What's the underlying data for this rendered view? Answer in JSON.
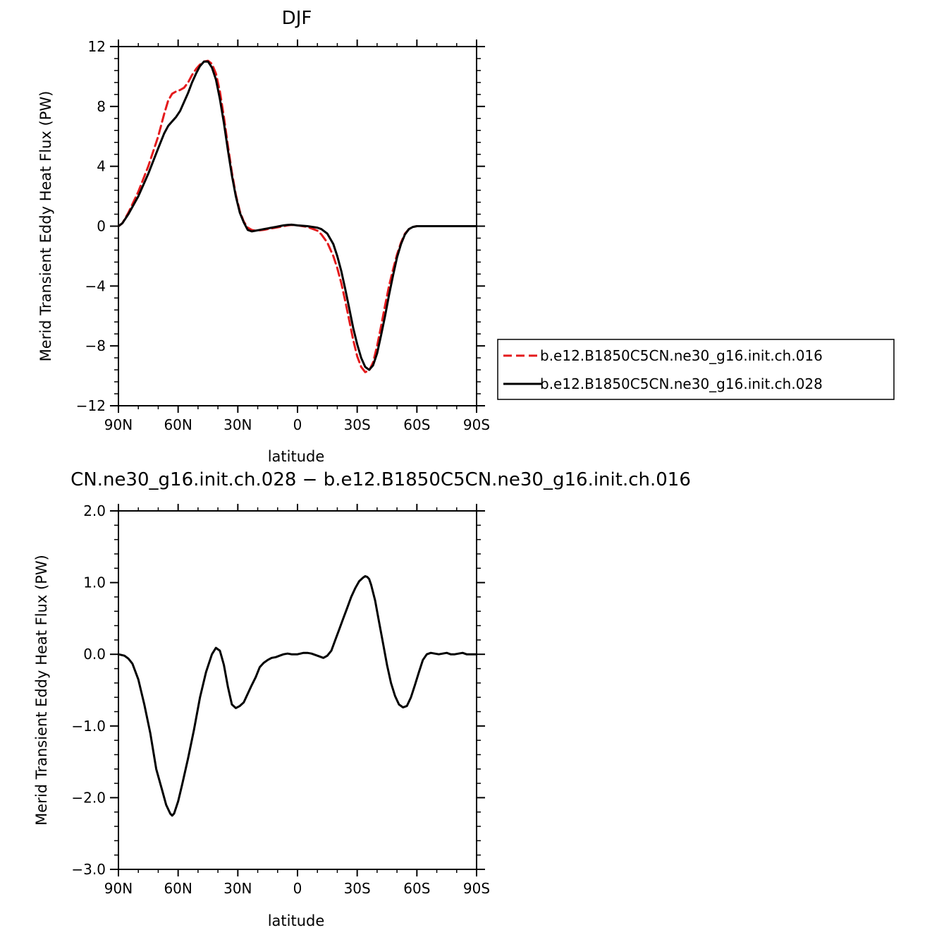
{
  "chart_data": [
    {
      "type": "line",
      "title": "DJF",
      "xlabel": "latitude",
      "ylabel": "Merid Transient Eddy Heat Flux (PW)",
      "xlim": [
        -90,
        90
      ],
      "ylim": [
        -12,
        12
      ],
      "x_ticks": [
        -90,
        -60,
        -30,
        0,
        30,
        60,
        90
      ],
      "x_tick_labels": [
        "90N",
        "60N",
        "30N",
        "0",
        "30S",
        "60S",
        "90S"
      ],
      "y_ticks": [
        -12,
        -8,
        -4,
        0,
        4,
        8,
        12
      ],
      "y_tick_labels": [
        "−12",
        "−8",
        "−4",
        "0",
        "4",
        "8",
        "12"
      ],
      "legend_position": "right",
      "series": [
        {
          "name": "b.e12.B1850C5CN.ne30_g16.init.ch.016",
          "color": "#e41a1c",
          "dash": "dashed",
          "x": [
            -90,
            -88,
            -85,
            -80,
            -75,
            -70,
            -67,
            -65,
            -63,
            -61,
            -59,
            -57,
            -55,
            -53,
            -51,
            -49,
            -47,
            -45,
            -43,
            -41,
            -39,
            -37,
            -35,
            -33,
            -31,
            -29,
            -27,
            -25,
            -23,
            -21,
            -19,
            -17,
            -15,
            -13,
            -11,
            -9,
            -7,
            -5,
            -3,
            0,
            5,
            10,
            12,
            15,
            18,
            20,
            22,
            24,
            26,
            28,
            30,
            32,
            34,
            36,
            38,
            40,
            42,
            44,
            46,
            48,
            50,
            52,
            54,
            56,
            58,
            60,
            62,
            64,
            66,
            68,
            70,
            72,
            75,
            80,
            85,
            90
          ],
          "y": [
            0,
            0.2,
            0.9,
            2.3,
            4.0,
            6.0,
            7.5,
            8.4,
            8.85,
            9.0,
            9.1,
            9.25,
            9.6,
            10.1,
            10.5,
            10.8,
            11.0,
            11.05,
            10.85,
            10.2,
            9.0,
            7.3,
            5.4,
            3.6,
            2.1,
            1.0,
            0.3,
            -0.1,
            -0.25,
            -0.3,
            -0.28,
            -0.25,
            -0.2,
            -0.15,
            -0.1,
            -0.05,
            0,
            0.05,
            0.08,
            0.05,
            -0.05,
            -0.3,
            -0.55,
            -1.1,
            -2.0,
            -2.8,
            -3.8,
            -5.0,
            -6.3,
            -7.6,
            -8.7,
            -9.4,
            -9.75,
            -9.65,
            -9.1,
            -8.0,
            -6.7,
            -5.3,
            -4.0,
            -2.9,
            -1.9,
            -1.1,
            -0.5,
            -0.2,
            -0.05,
            0,
            0,
            0,
            0,
            0,
            0,
            0,
            0,
            0,
            0,
            0
          ]
        },
        {
          "name": "b.e12.B1850C5CN.ne30_g16.init.ch.028",
          "color": "#000000",
          "dash": "solid",
          "x": [
            -90,
            -88,
            -85,
            -80,
            -75,
            -70,
            -67,
            -65,
            -63,
            -61,
            -59,
            -57,
            -55,
            -53,
            -51,
            -49,
            -47,
            -45,
            -43,
            -41,
            -39,
            -37,
            -35,
            -33,
            -31,
            -29,
            -27,
            -25,
            -23,
            -21,
            -19,
            -17,
            -15,
            -13,
            -11,
            -9,
            -7,
            -5,
            -3,
            0,
            5,
            10,
            12,
            15,
            18,
            20,
            22,
            24,
            26,
            28,
            30,
            32,
            34,
            36,
            38,
            40,
            42,
            44,
            46,
            48,
            50,
            52,
            54,
            56,
            58,
            60,
            62,
            64,
            66,
            68,
            70,
            72,
            75,
            80,
            85,
            90
          ],
          "y": [
            0,
            0.2,
            0.8,
            2.0,
            3.5,
            5.2,
            6.2,
            6.7,
            7.0,
            7.3,
            7.7,
            8.3,
            8.9,
            9.6,
            10.2,
            10.7,
            11.0,
            11.0,
            10.6,
            9.8,
            8.5,
            6.9,
            5.1,
            3.4,
            2.0,
            0.9,
            0.25,
            -0.25,
            -0.35,
            -0.3,
            -0.25,
            -0.2,
            -0.15,
            -0.1,
            -0.05,
            0,
            0.05,
            0.08,
            0.1,
            0.05,
            0,
            -0.1,
            -0.2,
            -0.5,
            -1.2,
            -2.0,
            -3.0,
            -4.2,
            -5.5,
            -6.8,
            -7.9,
            -8.8,
            -9.4,
            -9.6,
            -9.3,
            -8.5,
            -7.3,
            -6.0,
            -4.6,
            -3.3,
            -2.1,
            -1.2,
            -0.55,
            -0.2,
            -0.05,
            0,
            0,
            0,
            0,
            0,
            0,
            0,
            0,
            0,
            0,
            0
          ]
        }
      ]
    },
    {
      "type": "line",
      "title": "CN.ne30_g16.init.ch.028 − b.e12.B1850C5CN.ne30_g16.init.ch.016",
      "xlabel": "latitude",
      "ylabel": "Merid Transient Eddy Heat Flux (PW)",
      "xlim": [
        -90,
        90
      ],
      "ylim": [
        -3.0,
        2.0
      ],
      "x_ticks": [
        -90,
        -60,
        -30,
        0,
        30,
        60,
        90
      ],
      "x_tick_labels": [
        "90N",
        "60N",
        "30N",
        "0",
        "30S",
        "60S",
        "90S"
      ],
      "y_ticks": [
        -3.0,
        -2.0,
        -1.0,
        0.0,
        1.0,
        2.0
      ],
      "y_tick_labels": [
        "−3.0",
        "−2.0",
        "−1.0",
        "0.0",
        "1.0",
        "2.0"
      ],
      "series": [
        {
          "color": "#000000",
          "dash": "solid",
          "x": [
            -90,
            -87,
            -85,
            -83,
            -80,
            -77,
            -74,
            -71,
            -68,
            -66,
            -64,
            -63,
            -62,
            -60,
            -58,
            -55,
            -52,
            -49,
            -46,
            -43,
            -41,
            -39,
            -38,
            -37,
            -35,
            -33,
            -31,
            -29,
            -27,
            -25,
            -23,
            -21,
            -19,
            -17,
            -15,
            -13,
            -11,
            -9,
            -7,
            -5,
            -3,
            0,
            3,
            5,
            7,
            9,
            11,
            13,
            15,
            17,
            19,
            21,
            23,
            25,
            27,
            29,
            31,
            33,
            34,
            35,
            36,
            37,
            39,
            41,
            43,
            45,
            47,
            49,
            51,
            53,
            55,
            57,
            59,
            61,
            63,
            65,
            67,
            69,
            71,
            73,
            75,
            77,
            79,
            81,
            83,
            85,
            87,
            90
          ],
          "y": [
            0,
            -0.02,
            -0.06,
            -0.13,
            -0.35,
            -0.7,
            -1.1,
            -1.6,
            -1.9,
            -2.1,
            -2.22,
            -2.25,
            -2.22,
            -2.05,
            -1.82,
            -1.45,
            -1.05,
            -0.6,
            -0.25,
            0.0,
            0.09,
            0.05,
            -0.05,
            -0.15,
            -0.45,
            -0.7,
            -0.75,
            -0.72,
            -0.67,
            -0.55,
            -0.43,
            -0.32,
            -0.18,
            -0.12,
            -0.08,
            -0.05,
            -0.04,
            -0.02,
            0.0,
            0.01,
            0.0,
            0.0,
            0.02,
            0.02,
            0.01,
            -0.01,
            -0.03,
            -0.05,
            -0.02,
            0.05,
            0.2,
            0.35,
            0.5,
            0.65,
            0.8,
            0.92,
            1.02,
            1.07,
            1.09,
            1.08,
            1.05,
            0.97,
            0.75,
            0.45,
            0.15,
            -0.15,
            -0.4,
            -0.58,
            -0.7,
            -0.74,
            -0.72,
            -0.6,
            -0.43,
            -0.25,
            -0.08,
            0.0,
            0.02,
            0.01,
            0.0,
            0.01,
            0.02,
            0.0,
            0.0,
            0.01,
            0.02,
            0.0,
            0.0,
            0.0
          ]
        }
      ]
    }
  ]
}
